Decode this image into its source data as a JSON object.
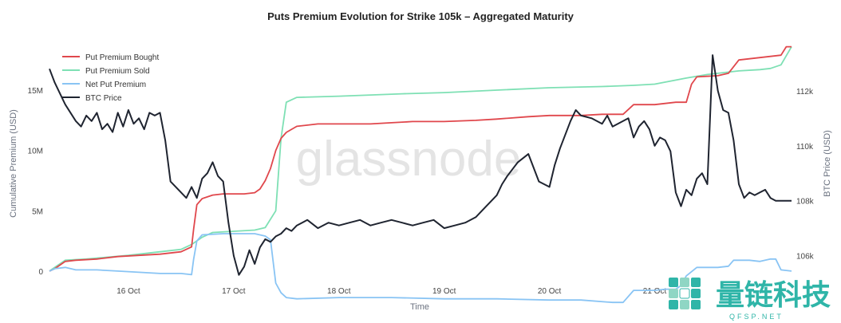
{
  "chart_data": {
    "type": "line",
    "title": "Puts Premium Evolution for Strike 105k – Aggregated Maturity",
    "xlabel": "Time",
    "ylabel": "Cumulative Premium (USD)",
    "y2label": "BTC Price (USD)",
    "x_ticks": [
      "16 Oct",
      "17 Oct",
      "18 Oct",
      "19 Oct",
      "20 Oct",
      "21 Oct"
    ],
    "x_range": [
      15.25,
      22.3
    ],
    "ylim": [
      -1000000,
      19500000
    ],
    "y_ticks": [
      0,
      5000000,
      10000000,
      15000000
    ],
    "y_tick_labels": [
      "0",
      "5M",
      "10M",
      "15M"
    ],
    "y2lim": [
      105000,
      114000
    ],
    "y2_ticks": [
      106000,
      108000,
      110000,
      112000
    ],
    "y2_tick_labels": [
      "106k",
      "108k",
      "110k",
      "112k"
    ],
    "legend_position": "top-left",
    "watermark": "glassnode",
    "brand": {
      "name": "量链科技",
      "sub": "QFSP.NET"
    },
    "series": [
      {
        "name": "Put Premium Bought",
        "axis": "left",
        "color": "#e0474c",
        "x": [
          15.25,
          15.3,
          15.4,
          15.5,
          15.7,
          15.9,
          16.1,
          16.3,
          16.5,
          16.6,
          16.62,
          16.65,
          16.7,
          16.8,
          16.9,
          17.0,
          17.1,
          17.2,
          17.25,
          17.3,
          17.35,
          17.4,
          17.45,
          17.5,
          17.6,
          17.8,
          18.0,
          18.3,
          18.5,
          18.7,
          19.0,
          19.3,
          19.5,
          19.8,
          20.0,
          20.3,
          20.5,
          20.7,
          20.8,
          21.0,
          21.2,
          21.3,
          21.35,
          21.4,
          21.6,
          21.7,
          21.8,
          22.0,
          22.1,
          22.2,
          22.25,
          22.3
        ],
        "y": [
          0,
          200000,
          800000,
          900000,
          1000000,
          1200000,
          1300000,
          1400000,
          1600000,
          2000000,
          3500000,
          5500000,
          6000000,
          6300000,
          6400000,
          6400000,
          6400000,
          6500000,
          6800000,
          7500000,
          8500000,
          10000000,
          11000000,
          11500000,
          12000000,
          12200000,
          12200000,
          12200000,
          12300000,
          12400000,
          12400000,
          12500000,
          12600000,
          12800000,
          12900000,
          12900000,
          13000000,
          13000000,
          13800000,
          13800000,
          14000000,
          14000000,
          15500000,
          16100000,
          16200000,
          16400000,
          17500000,
          17700000,
          17800000,
          17900000,
          18600000,
          18600000
        ]
      },
      {
        "name": "Put Premium Sold",
        "axis": "left",
        "color": "#7ee0b4",
        "x": [
          15.25,
          15.3,
          15.4,
          15.6,
          16.0,
          16.5,
          16.6,
          16.7,
          16.8,
          17.0,
          17.2,
          17.3,
          17.4,
          17.45,
          17.5,
          17.6,
          18.0,
          18.3,
          18.6,
          19.0,
          19.5,
          20.0,
          20.5,
          20.8,
          21.0,
          21.3,
          21.5,
          21.8,
          22.0,
          22.1,
          22.2,
          22.3
        ],
        "y": [
          0,
          300000,
          900000,
          1000000,
          1300000,
          1800000,
          2200000,
          2800000,
          3200000,
          3300000,
          3400000,
          3600000,
          5000000,
          11000000,
          14000000,
          14400000,
          14500000,
          14600000,
          14700000,
          14800000,
          15000000,
          15200000,
          15300000,
          15400000,
          15500000,
          16000000,
          16300000,
          16600000,
          16700000,
          16800000,
          17100000,
          18600000
        ]
      },
      {
        "name": "Net Put Premium",
        "axis": "left",
        "color": "#89c4f4",
        "x": [
          15.25,
          15.3,
          15.4,
          15.5,
          15.7,
          15.9,
          16.1,
          16.3,
          16.5,
          16.6,
          16.62,
          16.65,
          16.7,
          16.9,
          17.0,
          17.2,
          17.3,
          17.35,
          17.4,
          17.45,
          17.5,
          17.6,
          18.0,
          18.5,
          19.0,
          19.5,
          20.0,
          20.3,
          20.6,
          20.7,
          20.8,
          21.0,
          21.1,
          21.2,
          21.25,
          21.3,
          21.4,
          21.5,
          21.6,
          21.7,
          21.75,
          21.8,
          21.9,
          22.0,
          22.1,
          22.15,
          22.2,
          22.3
        ],
        "y": [
          0,
          200000,
          300000,
          100000,
          100000,
          0,
          -100000,
          -200000,
          -200000,
          -300000,
          1000000,
          2500000,
          3000000,
          3100000,
          3100000,
          3100000,
          2900000,
          2600000,
          -1000000,
          -1800000,
          -2200000,
          -2300000,
          -2200000,
          -2200000,
          -2300000,
          -2300000,
          -2400000,
          -2400000,
          -2600000,
          -2600000,
          -1600000,
          -1600000,
          -1500000,
          -1500000,
          -1200000,
          -400000,
          300000,
          300000,
          300000,
          400000,
          900000,
          900000,
          900000,
          800000,
          1000000,
          1000000,
          100000,
          0
        ]
      }
    ],
    "btc_price": {
      "name": "BTC Price",
      "axis": "right",
      "color": "#1f2430",
      "x": [
        15.25,
        15.3,
        15.4,
        15.5,
        15.55,
        15.6,
        15.65,
        15.7,
        15.75,
        15.8,
        15.85,
        15.9,
        15.95,
        16.0,
        16.05,
        16.1,
        16.15,
        16.2,
        16.25,
        16.3,
        16.35,
        16.4,
        16.45,
        16.5,
        16.55,
        16.6,
        16.65,
        16.7,
        16.75,
        16.8,
        16.85,
        16.9,
        16.95,
        17.0,
        17.05,
        17.1,
        17.15,
        17.2,
        17.25,
        17.3,
        17.35,
        17.4,
        17.45,
        17.5,
        17.55,
        17.6,
        17.7,
        17.8,
        17.9,
        18.0,
        18.1,
        18.2,
        18.3,
        18.4,
        18.5,
        18.6,
        18.7,
        18.8,
        18.9,
        19.0,
        19.1,
        19.2,
        19.3,
        19.4,
        19.5,
        19.55,
        19.6,
        19.7,
        19.8,
        19.9,
        20.0,
        20.05,
        20.1,
        20.2,
        20.25,
        20.3,
        20.4,
        20.5,
        20.55,
        20.6,
        20.7,
        20.75,
        20.8,
        20.85,
        20.9,
        20.95,
        21.0,
        21.05,
        21.1,
        21.15,
        21.2,
        21.25,
        21.3,
        21.35,
        21.4,
        21.45,
        21.5,
        21.55,
        21.6,
        21.65,
        21.7,
        21.75,
        21.8,
        21.85,
        21.9,
        21.95,
        22.0,
        22.05,
        22.1,
        22.15,
        22.2,
        22.25,
        22.3
      ],
      "y": [
        112800,
        112300,
        111500,
        110900,
        110700,
        111100,
        110900,
        111200,
        110600,
        110800,
        110500,
        111200,
        110700,
        111300,
        110800,
        111000,
        110600,
        111200,
        111100,
        111200,
        110200,
        108700,
        108500,
        108300,
        108100,
        108500,
        108100,
        108800,
        109000,
        109400,
        108900,
        108700,
        107200,
        106000,
        105300,
        105600,
        106200,
        105700,
        106300,
        106600,
        106500,
        106700,
        106800,
        107000,
        106900,
        107100,
        107300,
        107000,
        107200,
        107100,
        107200,
        107300,
        107100,
        107200,
        107300,
        107200,
        107100,
        107200,
        107300,
        107000,
        107100,
        107200,
        107400,
        107800,
        108200,
        108600,
        108900,
        109400,
        109700,
        108700,
        108500,
        109300,
        109900,
        110900,
        111300,
        111100,
        111000,
        110800,
        111100,
        110700,
        110900,
        111000,
        110300,
        110700,
        110900,
        110600,
        110000,
        110300,
        110200,
        109800,
        108300,
        107800,
        108400,
        108200,
        108800,
        109000,
        108600,
        113300,
        112000,
        111300,
        111200,
        110200,
        108600,
        108100,
        108300,
        108200,
        108300,
        108400,
        108100,
        108000,
        108000,
        108000,
        108000
      ]
    }
  }
}
